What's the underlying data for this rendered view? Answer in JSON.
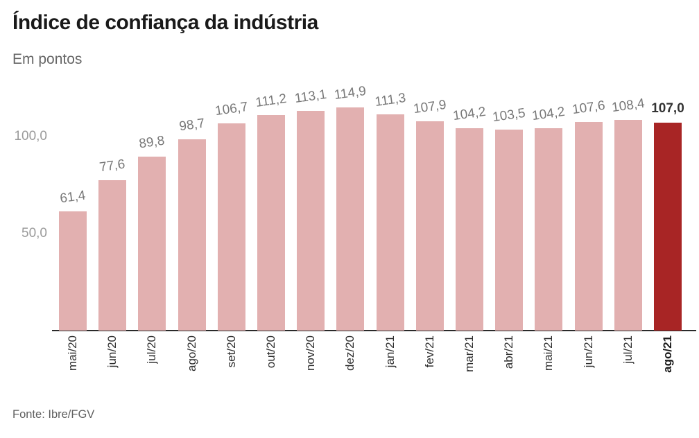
{
  "header": {
    "title": "Índice de confiança da indústria",
    "subtitle": "Em pontos"
  },
  "footer": {
    "source": "Fonte: Ibre/FGV"
  },
  "chart_data": {
    "type": "bar",
    "title": "Índice de confiança da indústria",
    "subtitle": "Em pontos",
    "categories": [
      "mai/20",
      "jun/20",
      "jul/20",
      "ago/20",
      "set/20",
      "out/20",
      "nov/20",
      "dez/20",
      "jan/21",
      "fev/21",
      "mar/21",
      "abr/21",
      "mai/21",
      "jun/21",
      "jul/21",
      "ago/21"
    ],
    "values": [
      61.4,
      77.6,
      89.8,
      98.7,
      106.7,
      111.2,
      113.1,
      114.9,
      111.3,
      107.9,
      104.2,
      103.5,
      104.2,
      107.6,
      108.4,
      107.0
    ],
    "value_labels": [
      "61,4",
      "77,6",
      "89,8",
      "98,7",
      "106,7",
      "111,2",
      "113,1",
      "114,9",
      "111,3",
      "107,9",
      "104,2",
      "103,5",
      "104,2",
      "107,6",
      "108,4",
      "107,0"
    ],
    "highlight_index": 15,
    "yticks": [
      {
        "value": 50,
        "label": "50,0"
      },
      {
        "value": 100,
        "label": "100,0"
      }
    ],
    "ylim": [
      0,
      125
    ],
    "grid": false,
    "legend": null,
    "colors": {
      "bar": "#e2b0b0",
      "highlight_bar": "#a82525",
      "value_label": "#787878",
      "highlight_value_label": "#333333",
      "axis_line": "#2a2a2a"
    },
    "source": "Fonte: Ibre/FGV"
  }
}
